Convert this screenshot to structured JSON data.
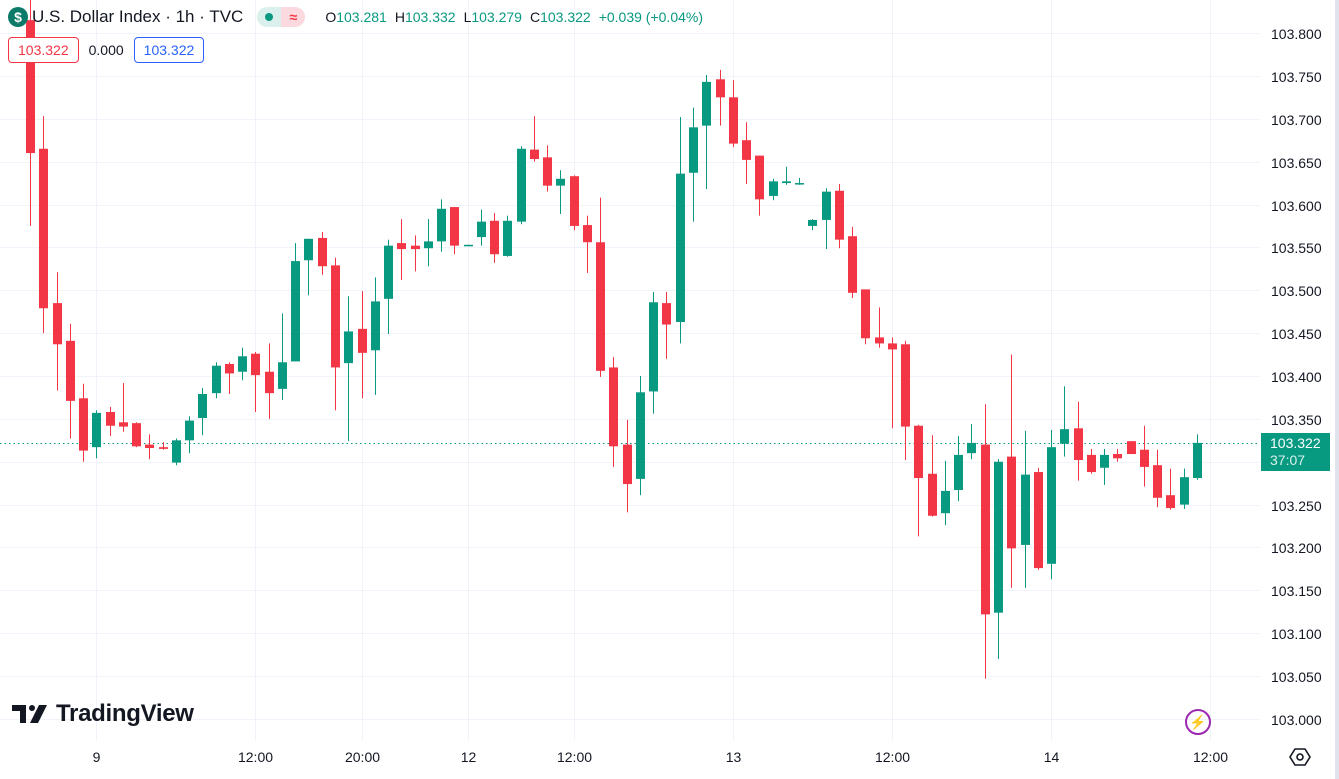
{
  "header": {
    "symbol_icon": "dollar-icon",
    "symbol_glyph": "$",
    "title": "U.S. Dollar Index · 1h · TVC",
    "market_status_icon": "market-open-dot-icon",
    "delayed_icon": "≈",
    "ohlc": {
      "o_label": "O",
      "o": "103.281",
      "h_label": "H",
      "h": "103.332",
      "l_label": "L",
      "l": "103.279",
      "c_label": "C",
      "c": "103.322",
      "change": "+0.039 (+0.04%)"
    }
  },
  "order_row": {
    "sell": "103.322",
    "spread": "0.000",
    "buy": "103.322"
  },
  "price_tag": {
    "price": "103.322",
    "countdown": "37:07"
  },
  "branding": {
    "logo_text": "TradingView"
  },
  "icons": {
    "bolt": "lightning-icon",
    "settings": "settings-hexagon-icon"
  },
  "colors": {
    "up": "#089981",
    "down": "#f23645",
    "grid": "#f0f3fa",
    "last": "#089981"
  },
  "chart_data": {
    "type": "candlestick",
    "title": "U.S. Dollar Index · 1h · TVC",
    "ylim": [
      103.0,
      103.8
    ],
    "yticks": [
      "103.000",
      "103.050",
      "103.100",
      "103.150",
      "103.200",
      "103.250",
      "103.300",
      "103.350",
      "103.400",
      "103.450",
      "103.500",
      "103.550",
      "103.600",
      "103.650",
      "103.700",
      "103.750",
      "103.800"
    ],
    "xticks": [
      {
        "bar": 5,
        "label": "9"
      },
      {
        "bar": 17,
        "label": "12:00"
      },
      {
        "bar": 25,
        "label": "20:00"
      },
      {
        "bar": 33,
        "label": "12"
      },
      {
        "bar": 41,
        "label": "12:00"
      },
      {
        "bar": 53,
        "label": "13"
      },
      {
        "bar": 65,
        "label": "12:00"
      },
      {
        "bar": 77,
        "label": "14"
      },
      {
        "bar": 89,
        "label": "12:00"
      }
    ],
    "last_price": 103.322,
    "grid": true,
    "ohlc": [
      [
        103.815,
        103.84,
        103.575,
        103.66
      ],
      [
        103.665,
        103.703,
        103.45,
        103.479
      ],
      [
        103.485,
        103.521,
        103.383,
        103.437
      ],
      [
        103.441,
        103.461,
        103.327,
        103.371
      ],
      [
        103.374,
        103.391,
        103.3,
        103.313
      ],
      [
        103.317,
        103.36,
        103.304,
        103.357
      ],
      [
        103.358,
        103.364,
        103.33,
        103.342
      ],
      [
        103.346,
        103.392,
        103.335,
        103.341
      ],
      [
        103.345,
        103.346,
        103.317,
        103.318
      ],
      [
        103.32,
        103.332,
        103.303,
        103.316
      ],
      [
        103.317,
        103.323,
        103.314,
        103.315
      ],
      [
        103.299,
        103.327,
        103.296,
        103.325
      ],
      [
        103.325,
        103.353,
        103.31,
        103.348
      ],
      [
        103.351,
        103.386,
        103.331,
        103.379
      ],
      [
        103.38,
        103.416,
        103.374,
        103.412
      ],
      [
        103.414,
        103.416,
        103.379,
        103.403
      ],
      [
        103.405,
        103.433,
        103.395,
        103.423
      ],
      [
        103.426,
        103.428,
        103.358,
        103.401
      ],
      [
        103.405,
        103.438,
        103.35,
        103.38
      ],
      [
        103.385,
        103.473,
        103.372,
        103.416
      ],
      [
        103.417,
        103.555,
        103.417,
        103.534
      ],
      [
        103.535,
        103.56,
        103.494,
        103.56
      ],
      [
        103.561,
        103.568,
        103.518,
        103.528
      ],
      [
        103.529,
        103.538,
        103.36,
        103.41
      ],
      [
        103.415,
        103.493,
        103.324,
        103.452
      ],
      [
        103.455,
        103.499,
        103.374,
        103.427
      ],
      [
        103.43,
        103.515,
        103.378,
        103.487
      ],
      [
        103.49,
        103.559,
        103.449,
        103.552
      ],
      [
        103.555,
        103.583,
        103.512,
        103.548
      ],
      [
        103.552,
        103.564,
        103.522,
        103.548
      ],
      [
        103.549,
        103.583,
        103.528,
        103.557
      ],
      [
        103.557,
        103.606,
        103.545,
        103.595
      ],
      [
        103.597,
        103.597,
        103.542,
        103.552
      ],
      [
        103.553,
        103.553,
        103.553,
        103.553
      ],
      [
        103.562,
        103.594,
        103.552,
        103.58
      ],
      [
        103.581,
        103.59,
        103.532,
        103.542
      ],
      [
        103.54,
        103.587,
        103.539,
        103.581
      ],
      [
        103.58,
        103.668,
        103.577,
        103.665
      ],
      [
        103.664,
        103.703,
        103.65,
        103.653
      ],
      [
        103.655,
        103.669,
        103.615,
        103.622
      ],
      [
        103.622,
        103.64,
        103.589,
        103.63
      ],
      [
        103.633,
        103.634,
        103.57,
        103.575
      ],
      [
        103.576,
        103.587,
        103.52,
        103.556
      ],
      [
        103.556,
        103.608,
        103.399,
        103.406
      ],
      [
        103.41,
        103.422,
        103.294,
        103.318
      ],
      [
        103.32,
        103.349,
        103.241,
        103.274
      ],
      [
        103.28,
        103.4,
        103.261,
        103.381
      ],
      [
        103.382,
        103.498,
        103.356,
        103.486
      ],
      [
        103.485,
        103.498,
        103.42,
        103.46
      ],
      [
        103.463,
        103.702,
        103.438,
        103.636
      ],
      [
        103.637,
        103.713,
        103.58,
        103.69
      ],
      [
        103.692,
        103.751,
        103.618,
        103.743
      ],
      [
        103.746,
        103.757,
        103.692,
        103.725
      ],
      [
        103.725,
        103.745,
        103.667,
        103.671
      ],
      [
        103.675,
        103.696,
        103.624,
        103.652
      ],
      [
        103.657,
        103.657,
        103.587,
        103.606
      ],
      [
        103.61,
        103.63,
        103.605,
        103.627
      ],
      [
        103.625,
        103.644,
        103.623,
        103.627
      ],
      [
        103.624,
        103.631,
        103.623,
        103.625
      ],
      [
        103.575,
        103.583,
        103.57,
        103.582
      ],
      [
        103.582,
        103.619,
        103.548,
        103.615
      ],
      [
        103.616,
        103.624,
        103.549,
        103.559
      ],
      [
        103.563,
        103.574,
        103.491,
        103.497
      ],
      [
        103.501,
        103.501,
        103.437,
        103.444
      ],
      [
        103.445,
        103.48,
        103.433,
        103.438
      ],
      [
        103.438,
        103.445,
        103.339,
        103.431
      ],
      [
        103.437,
        103.441,
        103.302,
        103.341
      ],
      [
        103.342,
        103.343,
        103.213,
        103.281
      ],
      [
        103.286,
        103.331,
        103.236,
        103.237
      ],
      [
        103.24,
        103.301,
        103.226,
        103.266
      ],
      [
        103.267,
        103.33,
        103.254,
        103.308
      ],
      [
        103.31,
        103.344,
        103.303,
        103.322
      ],
      [
        103.32,
        103.367,
        103.047,
        103.122
      ],
      [
        103.124,
        103.303,
        103.07,
        103.3
      ],
      [
        103.306,
        103.425,
        103.153,
        103.199
      ],
      [
        103.203,
        103.336,
        103.153,
        103.285
      ],
      [
        103.288,
        103.293,
        103.174,
        103.176
      ],
      [
        103.181,
        103.337,
        103.163,
        103.317
      ],
      [
        103.321,
        103.388,
        103.306,
        103.338
      ],
      [
        103.339,
        103.37,
        103.278,
        103.302
      ],
      [
        103.308,
        103.315,
        103.286,
        103.288
      ],
      [
        103.293,
        103.315,
        103.273,
        103.308
      ],
      [
        103.309,
        103.315,
        103.3,
        103.304
      ],
      [
        103.324,
        103.324,
        103.309,
        103.309
      ],
      [
        103.314,
        103.342,
        103.271,
        103.294
      ],
      [
        103.296,
        103.314,
        103.247,
        103.258
      ],
      [
        103.261,
        103.292,
        103.244,
        103.246
      ],
      [
        103.25,
        103.292,
        103.245,
        103.282
      ],
      [
        103.281,
        103.332,
        103.279,
        103.322
      ]
    ]
  }
}
